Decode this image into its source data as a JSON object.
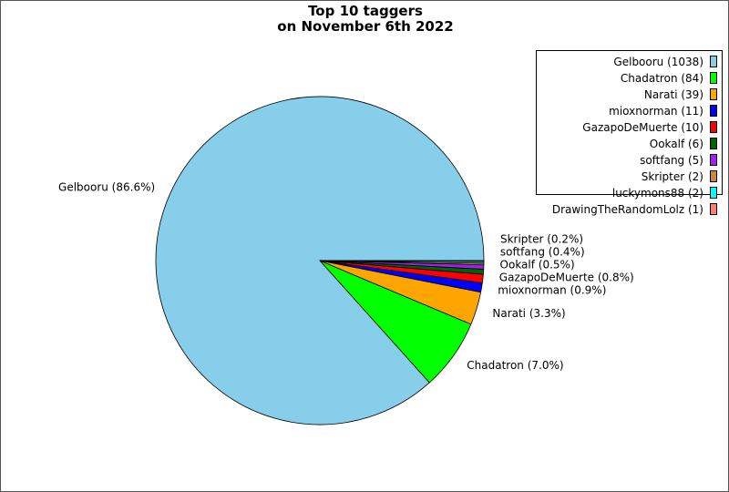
{
  "chart_data": {
    "type": "pie",
    "title_line1": "Top 10 taggers",
    "title_line2": "on November 6th 2022",
    "start_angle_deg": 0,
    "direction": "counterclockwise",
    "legend_position": "top-right",
    "slices": [
      {
        "name": "Gelbooru",
        "value": 1038,
        "color": "#87ceeb",
        "legend": "Gelbooru (1038)",
        "label": "Gelbooru (86.6%)"
      },
      {
        "name": "Chadatron",
        "value": 84,
        "color": "#00ff00",
        "legend": "Chadatron (84)",
        "label": "Chadatron (7.0%)"
      },
      {
        "name": "Narati",
        "value": 39,
        "color": "#ffa500",
        "legend": "Narati (39)",
        "label": "Narati (3.3%)"
      },
      {
        "name": "mioxnorman",
        "value": 11,
        "color": "#0000ff",
        "legend": "mioxnorman (11)",
        "label": "mioxnorman (0.9%)"
      },
      {
        "name": "GazapoDeMuerte",
        "value": 10,
        "color": "#ff0000",
        "legend": "GazapoDeMuerte (10)",
        "label": "GazapoDeMuerte (0.8%)"
      },
      {
        "name": "Ookalf",
        "value": 6,
        "color": "#006400",
        "legend": "Ookalf (6)",
        "label": "Ookalf (0.5%)"
      },
      {
        "name": "softfang",
        "value": 5,
        "color": "#a020f0",
        "legend": "softfang (5)",
        "label": "softfang (0.4%)"
      },
      {
        "name": "Skripter",
        "value": 2,
        "color": "#cd853f",
        "legend": "Skripter (2)",
        "label": "Skripter (0.2%)"
      },
      {
        "name": "luckymons88",
        "value": 2,
        "color": "#00ffff",
        "legend": "luckymons88 (2)",
        "label": ""
      },
      {
        "name": "DrawingTheRandomLolz",
        "value": 1,
        "color": "#fa8072",
        "legend": "DrawingTheRandomLolz (1)",
        "label": ""
      }
    ]
  }
}
